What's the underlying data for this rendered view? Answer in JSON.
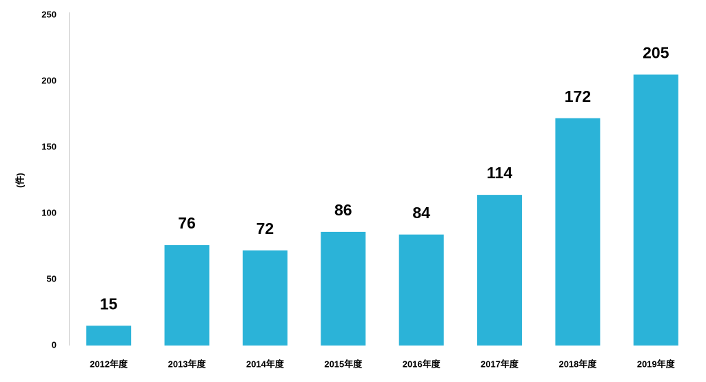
{
  "chart_data": {
    "type": "bar",
    "y_label": "(件)",
    "categories": [
      "2012年度",
      "2013年度",
      "2014年度",
      "2015年度",
      "2016年度",
      "2017年度",
      "2018年度",
      "2019年度"
    ],
    "values": [
      15,
      76,
      72,
      86,
      84,
      114,
      172,
      205
    ],
    "color": "#2bb3d8",
    "ylim": [
      0,
      250
    ],
    "yticks": [
      0,
      50,
      100,
      150,
      200,
      250
    ],
    "grid": false
  }
}
